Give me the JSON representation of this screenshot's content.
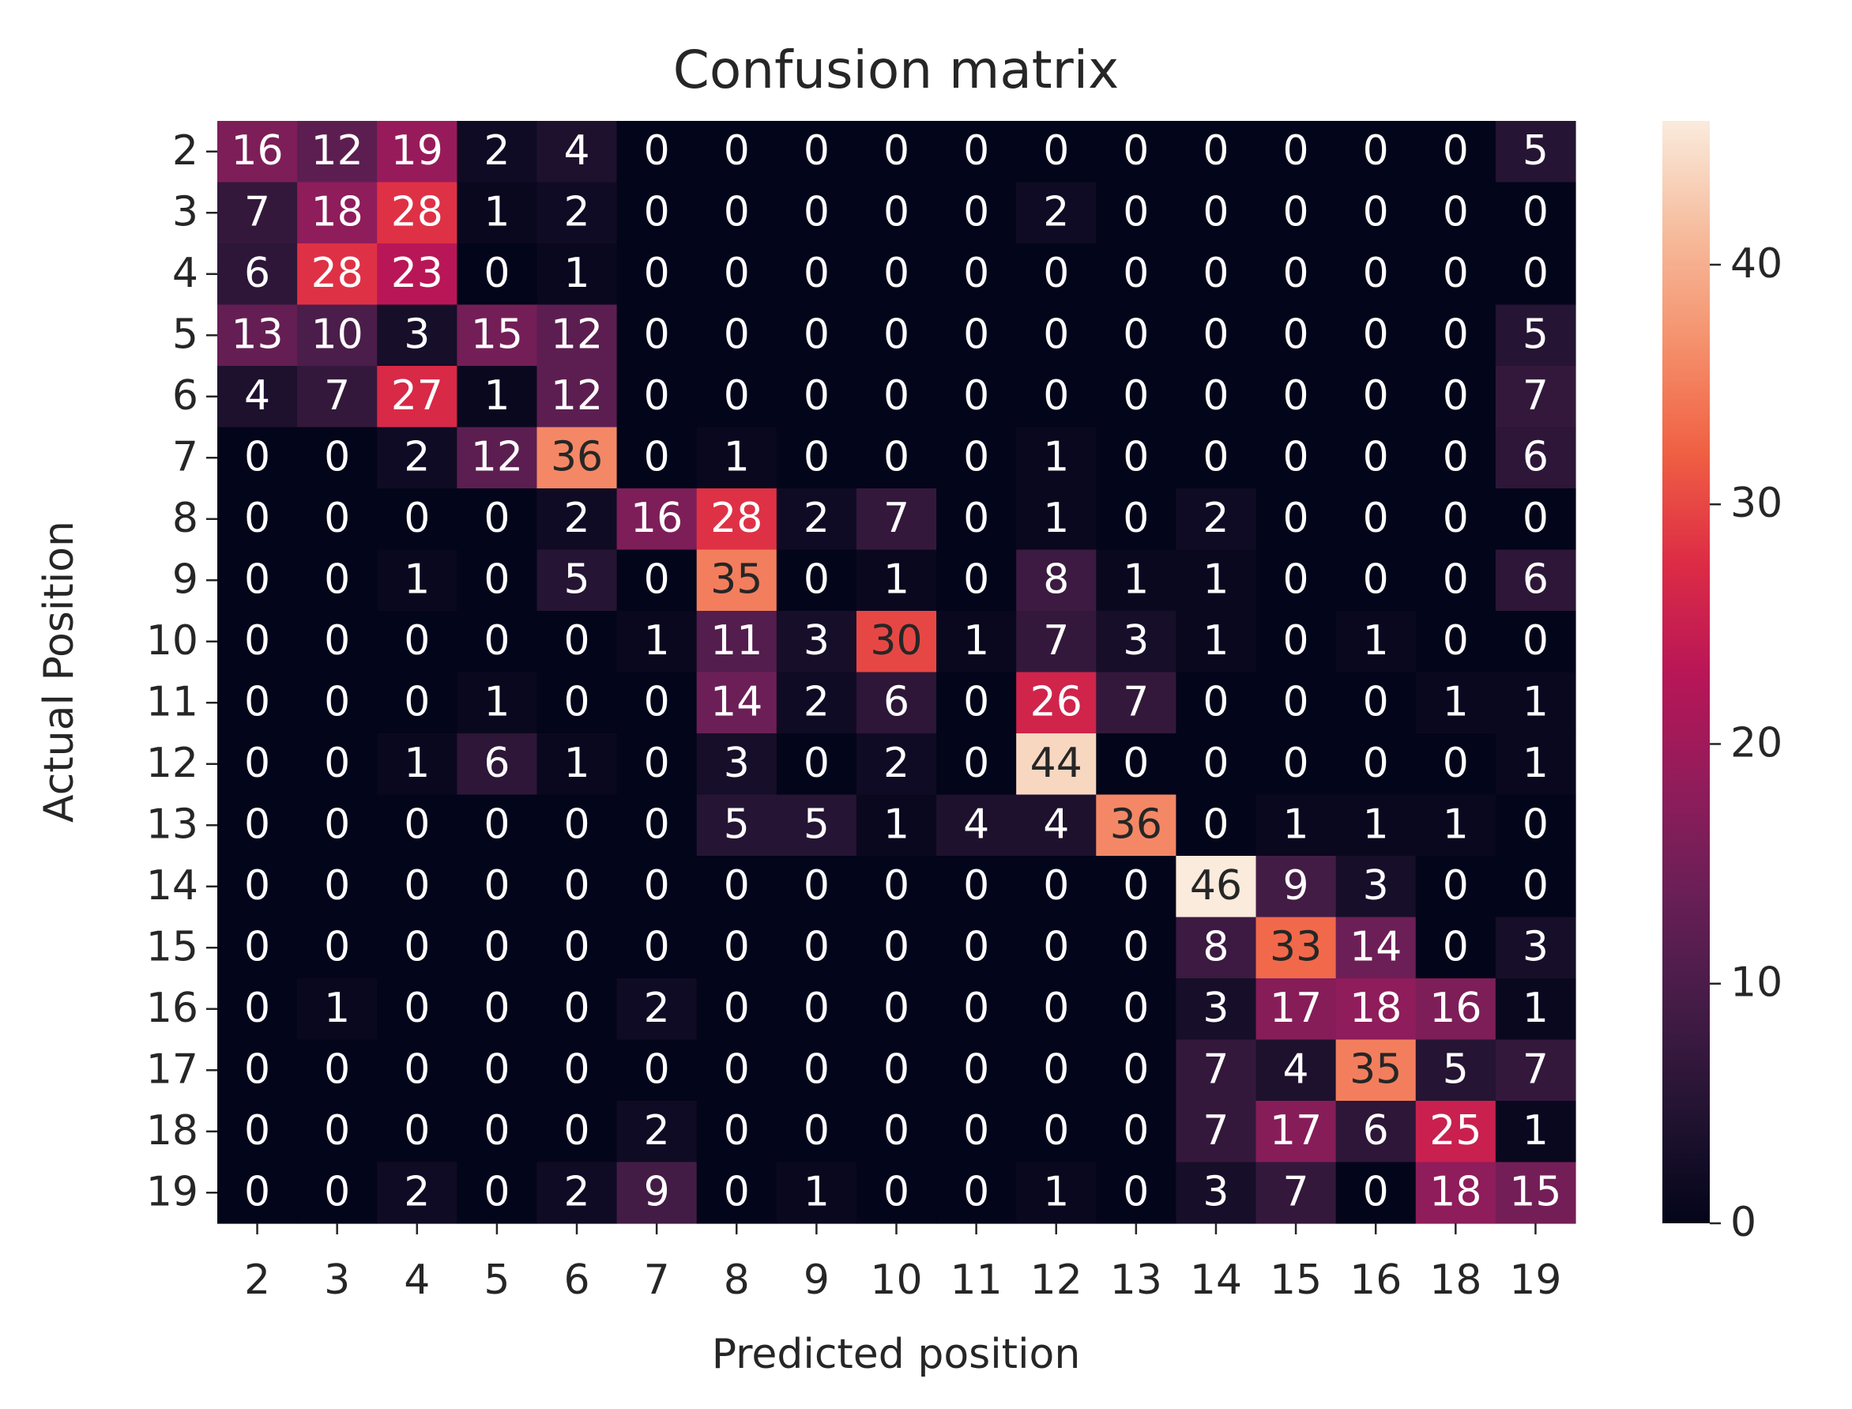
{
  "chart_data": {
    "type": "heatmap",
    "title": "Confusion matrix",
    "xlabel": "Predicted position",
    "ylabel": "Actual Position",
    "x_categories": [
      "2",
      "3",
      "4",
      "5",
      "6",
      "7",
      "8",
      "9",
      "10",
      "11",
      "12",
      "13",
      "14",
      "15",
      "16",
      "18",
      "19"
    ],
    "y_categories": [
      "2",
      "3",
      "4",
      "5",
      "6",
      "7",
      "8",
      "9",
      "10",
      "11",
      "12",
      "13",
      "14",
      "15",
      "16",
      "17",
      "18",
      "19"
    ],
    "values": [
      [
        16,
        12,
        19,
        2,
        4,
        0,
        0,
        0,
        0,
        0,
        0,
        0,
        0,
        0,
        0,
        0,
        5
      ],
      [
        7,
        18,
        28,
        1,
        2,
        0,
        0,
        0,
        0,
        0,
        2,
        0,
        0,
        0,
        0,
        0,
        0
      ],
      [
        6,
        28,
        23,
        0,
        1,
        0,
        0,
        0,
        0,
        0,
        0,
        0,
        0,
        0,
        0,
        0,
        0
      ],
      [
        13,
        10,
        3,
        15,
        12,
        0,
        0,
        0,
        0,
        0,
        0,
        0,
        0,
        0,
        0,
        0,
        5
      ],
      [
        4,
        7,
        27,
        1,
        12,
        0,
        0,
        0,
        0,
        0,
        0,
        0,
        0,
        0,
        0,
        0,
        7
      ],
      [
        0,
        0,
        2,
        12,
        36,
        0,
        1,
        0,
        0,
        0,
        1,
        0,
        0,
        0,
        0,
        0,
        6
      ],
      [
        0,
        0,
        0,
        0,
        2,
        16,
        28,
        2,
        7,
        0,
        1,
        0,
        2,
        0,
        0,
        0,
        0
      ],
      [
        0,
        0,
        1,
        0,
        5,
        0,
        35,
        0,
        1,
        0,
        8,
        1,
        1,
        0,
        0,
        0,
        6
      ],
      [
        0,
        0,
        0,
        0,
        0,
        1,
        11,
        3,
        30,
        1,
        7,
        3,
        1,
        0,
        1,
        0,
        0
      ],
      [
        0,
        0,
        0,
        1,
        0,
        0,
        14,
        2,
        6,
        0,
        26,
        7,
        0,
        0,
        0,
        1,
        1
      ],
      [
        0,
        0,
        1,
        6,
        1,
        0,
        3,
        0,
        2,
        0,
        44,
        0,
        0,
        0,
        0,
        0,
        1
      ],
      [
        0,
        0,
        0,
        0,
        0,
        0,
        5,
        5,
        1,
        4,
        4,
        36,
        0,
        1,
        1,
        1,
        0
      ],
      [
        0,
        0,
        0,
        0,
        0,
        0,
        0,
        0,
        0,
        0,
        0,
        0,
        46,
        9,
        3,
        0,
        0
      ],
      [
        0,
        0,
        0,
        0,
        0,
        0,
        0,
        0,
        0,
        0,
        0,
        0,
        8,
        33,
        14,
        0,
        3
      ],
      [
        0,
        1,
        0,
        0,
        0,
        2,
        0,
        0,
        0,
        0,
        0,
        0,
        3,
        17,
        18,
        16,
        1
      ],
      [
        0,
        0,
        0,
        0,
        0,
        0,
        0,
        0,
        0,
        0,
        0,
        0,
        7,
        4,
        35,
        5,
        7
      ],
      [
        0,
        0,
        0,
        0,
        0,
        2,
        0,
        0,
        0,
        0,
        0,
        0,
        7,
        17,
        6,
        25,
        1
      ],
      [
        0,
        0,
        2,
        0,
        2,
        9,
        0,
        1,
        0,
        0,
        1,
        0,
        3,
        7,
        0,
        18,
        15
      ]
    ],
    "colormap": "rocket",
    "clim": [
      0,
      46
    ],
    "cticks": [
      0,
      10,
      20,
      30,
      40
    ]
  }
}
